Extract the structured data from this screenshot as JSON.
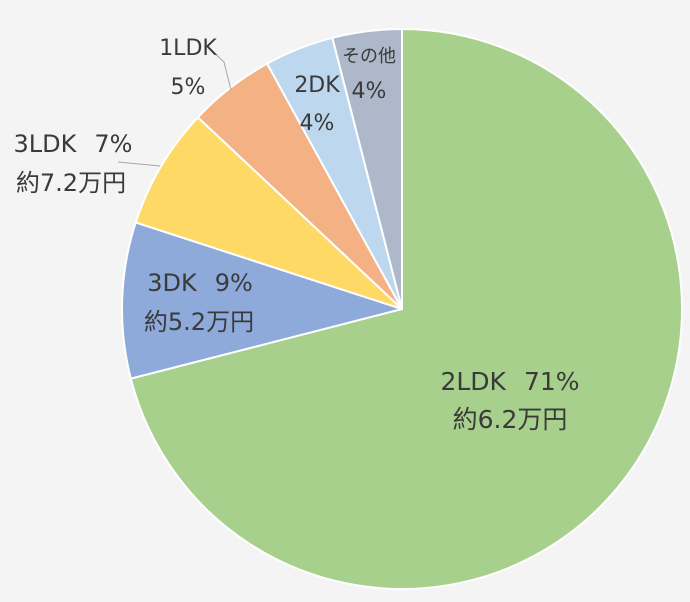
{
  "chart_data": {
    "type": "pie",
    "start_angle_deg": 0,
    "direction": "clockwise",
    "slices": [
      {
        "label": "2LDK",
        "percent_text": "71%",
        "value": 71,
        "rent_text": "約6.2万円",
        "color": "#a8d08d"
      },
      {
        "label": "3DK",
        "percent_text": "9%",
        "value": 9,
        "rent_text": "約5.2万円",
        "color": "#8eaadb"
      },
      {
        "label": "3LDK",
        "percent_text": "7%",
        "value": 7,
        "rent_text": "約7.2万円",
        "color": "#ffd966"
      },
      {
        "label": "1LDK",
        "percent_text": "5%",
        "value": 5,
        "rent_text": "",
        "color": "#f4b183"
      },
      {
        "label": "2DK",
        "percent_text": "4%",
        "value": 4,
        "rent_text": "",
        "color": "#bdd7ee"
      },
      {
        "label": "その他",
        "percent_text": "4%",
        "value": 4,
        "rent_text": "",
        "color": "#adb9ca"
      }
    ]
  }
}
